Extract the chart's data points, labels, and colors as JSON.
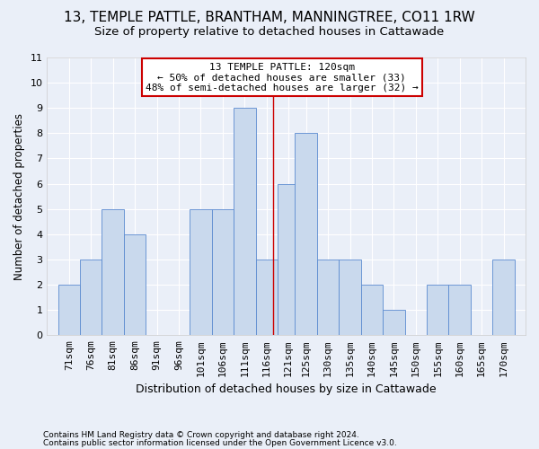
{
  "title": "13, TEMPLE PATTLE, BRANTHAM, MANNINGTREE, CO11 1RW",
  "subtitle": "Size of property relative to detached houses in Cattawade",
  "xlabel": "Distribution of detached houses by size in Cattawade",
  "ylabel": "Number of detached properties",
  "footnote1": "Contains HM Land Registry data © Crown copyright and database right 2024.",
  "footnote2": "Contains public sector information licensed under the Open Government Licence v3.0.",
  "annotation_line1": "13 TEMPLE PATTLE: 120sqm",
  "annotation_line2": "← 50% of detached houses are smaller (33)",
  "annotation_line3": "48% of semi-detached houses are larger (32) →",
  "bar_color": "#c9d9ed",
  "bar_edge_color": "#5b8bd0",
  "reference_line_x": 120,
  "reference_line_color": "#cc0000",
  "categories": [
    "71sqm",
    "76sqm",
    "81sqm",
    "86sqm",
    "91sqm",
    "96sqm",
    "101sqm",
    "106sqm",
    "111sqm",
    "116sqm",
    "121sqm",
    "125sqm",
    "130sqm",
    "135sqm",
    "140sqm",
    "145sqm",
    "150sqm",
    "155sqm",
    "160sqm",
    "165sqm",
    "170sqm"
  ],
  "bin_starts": [
    71,
    76,
    81,
    86,
    91,
    96,
    101,
    106,
    111,
    116,
    121,
    125,
    130,
    135,
    140,
    145,
    150,
    155,
    160,
    165,
    170
  ],
  "bin_width": 5,
  "values": [
    2,
    3,
    5,
    4,
    0,
    0,
    5,
    5,
    9,
    3,
    6,
    8,
    3,
    3,
    2,
    1,
    0,
    2,
    2,
    0,
    3
  ],
  "xlim": [
    68.5,
    177.5
  ],
  "ylim": [
    0,
    11
  ],
  "yticks": [
    0,
    1,
    2,
    3,
    4,
    5,
    6,
    7,
    8,
    9,
    10,
    11
  ],
  "background_color": "#eaeff8",
  "plot_background": "#eaeff8",
  "grid_color": "#ffffff",
  "title_fontsize": 11,
  "subtitle_fontsize": 9.5,
  "tick_fontsize": 8,
  "ylabel_fontsize": 8.5,
  "xlabel_fontsize": 9,
  "annotation_box_facecolor": "#ffffff",
  "annotation_box_edgecolor": "#cc0000",
  "annotation_fontsize": 8,
  "footnote_fontsize": 6.5
}
